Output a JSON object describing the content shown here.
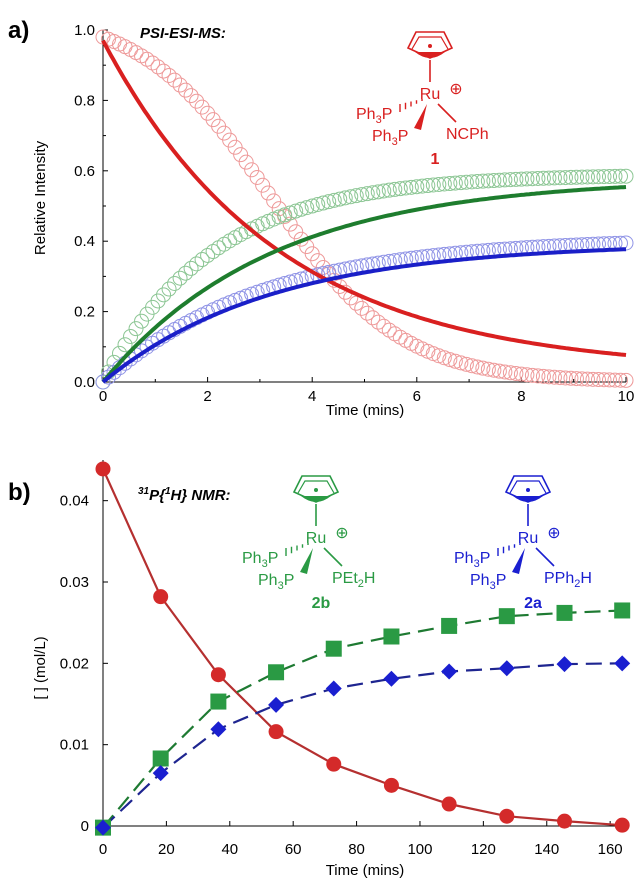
{
  "colors": {
    "red": "#d92020",
    "red_light": "#ee9a9a",
    "green": "#1e7d2e",
    "green_light": "#8cc694",
    "blue": "#1a1fc8",
    "blue_light": "#8f93e6",
    "nmr_red": "#d42a2a",
    "nmr_red_line": "#b53030",
    "nmr_green": "#2a9a44",
    "nmr_green_line": "#1e7a32",
    "nmr_blue": "#1a1fd0",
    "nmr_blue_line": "#1e2590"
  },
  "panel_a": {
    "label": "a)",
    "method": "PSI-ESI-MS:",
    "compound": {
      "metal": "Ru",
      "charge": "⊕",
      "ligand_upper": "Ph3P",
      "ligand_lower": "Ph3P",
      "ligand_right": "NCPh",
      "number": "1"
    }
  },
  "panel_b": {
    "label": "b)",
    "method": "31P{1H} NMR:",
    "method_sup1": "31",
    "method_text1": "P{",
    "method_sup2": "1",
    "method_text2": "H} NMR:",
    "compound_2b": {
      "metal": "Ru",
      "charge": "⊕",
      "ligand_upper": "Ph3P",
      "ligand_lower": "Ph3P",
      "ligand_right": "PEt2H",
      "number": "2b"
    },
    "compound_2a": {
      "metal": "Ru",
      "charge": "⊕",
      "ligand_upper": "Ph3P",
      "ligand_lower": "Ph3P",
      "ligand_right": "PPh2H",
      "number": "2a"
    }
  },
  "chart_data": [
    {
      "type": "scatter",
      "xlabel": "Time (mins)",
      "ylabel": "Relative Intensity",
      "xlim": [
        0,
        10
      ],
      "ylim": [
        0,
        1.0
      ],
      "xticks": [
        0,
        2,
        4,
        6,
        8,
        10
      ],
      "yticks": [
        0.0,
        0.2,
        0.4,
        0.6,
        0.8,
        1.0
      ],
      "ytick_labels": [
        "0.0",
        "0.2",
        "0.4",
        "0.6",
        "0.8",
        "1.0"
      ],
      "series": [
        {
          "color": "red",
          "kind": "fit",
          "model": {
            "form": "decay",
            "a": 0.94,
            "k": 0.3,
            "c": 0.03
          }
        },
        {
          "color": "red",
          "kind": "data",
          "model": {
            "form": "sigmoid_decay",
            "a": 0.98,
            "t0": 3.2,
            "w": 1.25,
            "c": 0.0
          }
        },
        {
          "color": "green",
          "kind": "fit",
          "model": {
            "form": "rise",
            "a": 0.58,
            "k": 0.31
          }
        },
        {
          "color": "green",
          "kind": "data",
          "model": {
            "form": "rise",
            "a": 0.59,
            "k": 0.47
          }
        },
        {
          "color": "blue",
          "kind": "fit",
          "model": {
            "form": "rise",
            "a": 0.395,
            "k": 0.31
          }
        },
        {
          "color": "blue",
          "kind": "data",
          "model": {
            "form": "rise",
            "a": 0.41,
            "k": 0.33
          }
        }
      ]
    },
    {
      "type": "line",
      "xlabel": "Time (mins)",
      "ylabel": "[ ] (mol/L)",
      "xlim": [
        0,
        165
      ],
      "ylim": [
        0,
        0.045
      ],
      "xticks": [
        0,
        20,
        40,
        60,
        80,
        100,
        120,
        140,
        160
      ],
      "yticks": [
        0,
        0.01,
        0.02,
        0.03,
        0.04
      ],
      "ytick_labels": [
        "0",
        "0.01",
        "0.02",
        "0.03",
        "0.04"
      ],
      "series": [
        {
          "color": "red",
          "marker": "circle",
          "line": "solid",
          "x": [
            0,
            18.2,
            36.4,
            54.6,
            72.8,
            91,
            109.2,
            127.4,
            145.6,
            163.8
          ],
          "y": [
            0.0439,
            0.0282,
            0.0186,
            0.0116,
            0.0076,
            0.005,
            0.0027,
            0.0012,
            0.0006,
            0.0001
          ]
        },
        {
          "color": "green",
          "marker": "square",
          "line": "dashed",
          "x": [
            0,
            18.2,
            36.4,
            54.6,
            72.8,
            91,
            109.2,
            127.4,
            145.6,
            163.8
          ],
          "y": [
            -0.0002,
            0.0083,
            0.0153,
            0.0189,
            0.0218,
            0.0233,
            0.0246,
            0.0258,
            0.0262,
            0.0265
          ]
        },
        {
          "color": "blue",
          "marker": "diamond",
          "line": "dashed",
          "x": [
            0,
            18.2,
            36.4,
            54.6,
            72.8,
            91,
            109.2,
            127.4,
            145.6,
            163.8
          ],
          "y": [
            -0.0002,
            0.0065,
            0.0119,
            0.0149,
            0.0169,
            0.0181,
            0.019,
            0.0194,
            0.0199,
            0.02
          ]
        }
      ]
    }
  ]
}
